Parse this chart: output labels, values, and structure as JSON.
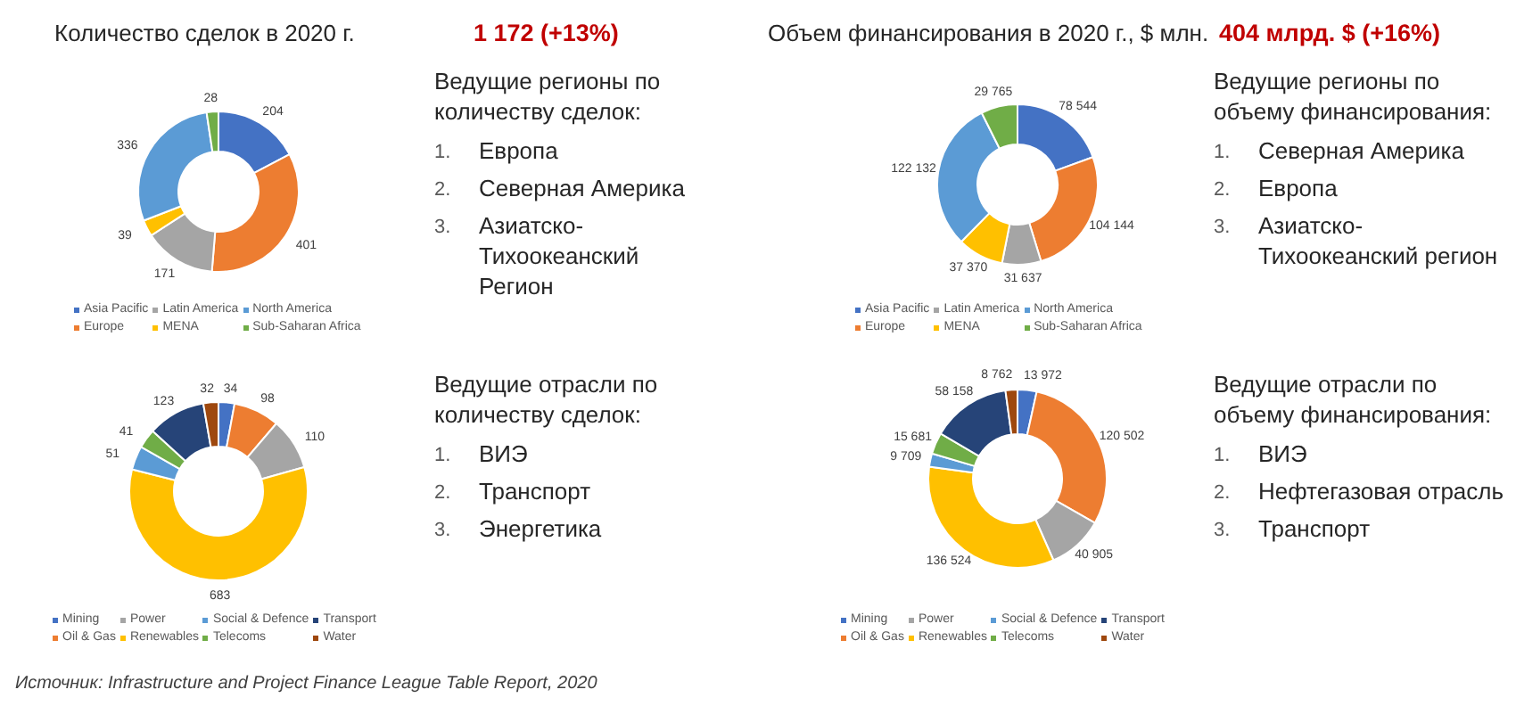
{
  "chart_data": [
    {
      "type": "donut",
      "title": "Количество сделок в 2020 г.",
      "subtitle": "1 172 (+13%)",
      "categories": [
        "Asia Pacific",
        "Europe",
        "Latin America",
        "MENA",
        "North America",
        "Sub-Saharan Africa"
      ],
      "values": [
        204,
        401,
        171,
        39,
        336,
        28
      ],
      "value_labels": [
        "204",
        "401",
        "171",
        "39",
        "336",
        "28"
      ],
      "colors": [
        "#4472c4",
        "#ed7d31",
        "#a5a5a5",
        "#ffc000",
        "#5b9bd5",
        "#70ad47"
      ],
      "legend": "bottom"
    },
    {
      "type": "other",
      "title": "Ведущие регионы по количеству сделок:",
      "annotations": [
        "1. Европа",
        "2. Северная Америка",
        "3. Азиатско-Тихоокеанский Регион"
      ]
    },
    {
      "type": "donut",
      "title": "Объем финансирования в 2020 г., $ млн.",
      "subtitle": "404 млрд. $ (+16%)",
      "categories": [
        "Asia Pacific",
        "Europe",
        "Latin America",
        "MENA",
        "North America",
        "Sub-Saharan Africa"
      ],
      "values": [
        78544,
        104144,
        31637,
        37370,
        122132,
        29765
      ],
      "value_labels": [
        "78 544",
        "104 144",
        "31 637",
        "37 370",
        "122 132",
        "29 765"
      ],
      "colors": [
        "#4472c4",
        "#ed7d31",
        "#a5a5a5",
        "#ffc000",
        "#5b9bd5",
        "#70ad47"
      ],
      "legend": "bottom"
    },
    {
      "type": "other",
      "title": "Ведущие регионы по объему финансирования:",
      "annotations": [
        "1. Северная Америка",
        "2. Европа",
        "3. Азиатско-Тихоокеанский регион"
      ]
    },
    {
      "type": "donut",
      "categories": [
        "Mining",
        "Oil & Gas",
        "Power",
        "Renewables",
        "Social & Defence",
        "Telecoms",
        "Transport",
        "Water"
      ],
      "values": [
        34,
        98,
        110,
        683,
        51,
        41,
        123,
        32
      ],
      "value_labels": [
        "34",
        "98",
        "110",
        "683",
        "51",
        "41",
        "123",
        "32"
      ],
      "colors": [
        "#4472c4",
        "#ed7d31",
        "#a5a5a5",
        "#ffc000",
        "#5b9bd5",
        "#70ad47",
        "#264478",
        "#9e480e"
      ],
      "legend": "bottom",
      "annotations": [
        "Источник: Infrastructure and Project Finance League Table Report, 2020"
      ]
    },
    {
      "type": "other",
      "title": "Ведущие отрасли по количеству сделок:",
      "annotations": [
        "1. ВИЭ",
        "2. Транспорт",
        "3. Энергетика"
      ]
    },
    {
      "type": "donut",
      "categories": [
        "Mining",
        "Oil & Gas",
        "Power",
        "Renewables",
        "Social & Defence",
        "Telecoms",
        "Transport",
        "Water"
      ],
      "values": [
        13972,
        120502,
        40905,
        136524,
        9709,
        15681,
        58158,
        8762
      ],
      "value_labels": [
        "13 972",
        "120 502",
        "40 905",
        "136 524",
        "9 709",
        "15 681",
        "58 158",
        "8 762"
      ],
      "colors": [
        "#4472c4",
        "#ed7d31",
        "#a5a5a5",
        "#ffc000",
        "#5b9bd5",
        "#70ad47",
        "#264478",
        "#9e480e"
      ],
      "legend": "bottom"
    },
    {
      "type": "other",
      "title": "Ведущие отрасли по объему финансирования:",
      "annotations": [
        "1. ВИЭ",
        "2. Нефтегазовая отрасль",
        "3. Транспорт"
      ]
    }
  ]
}
